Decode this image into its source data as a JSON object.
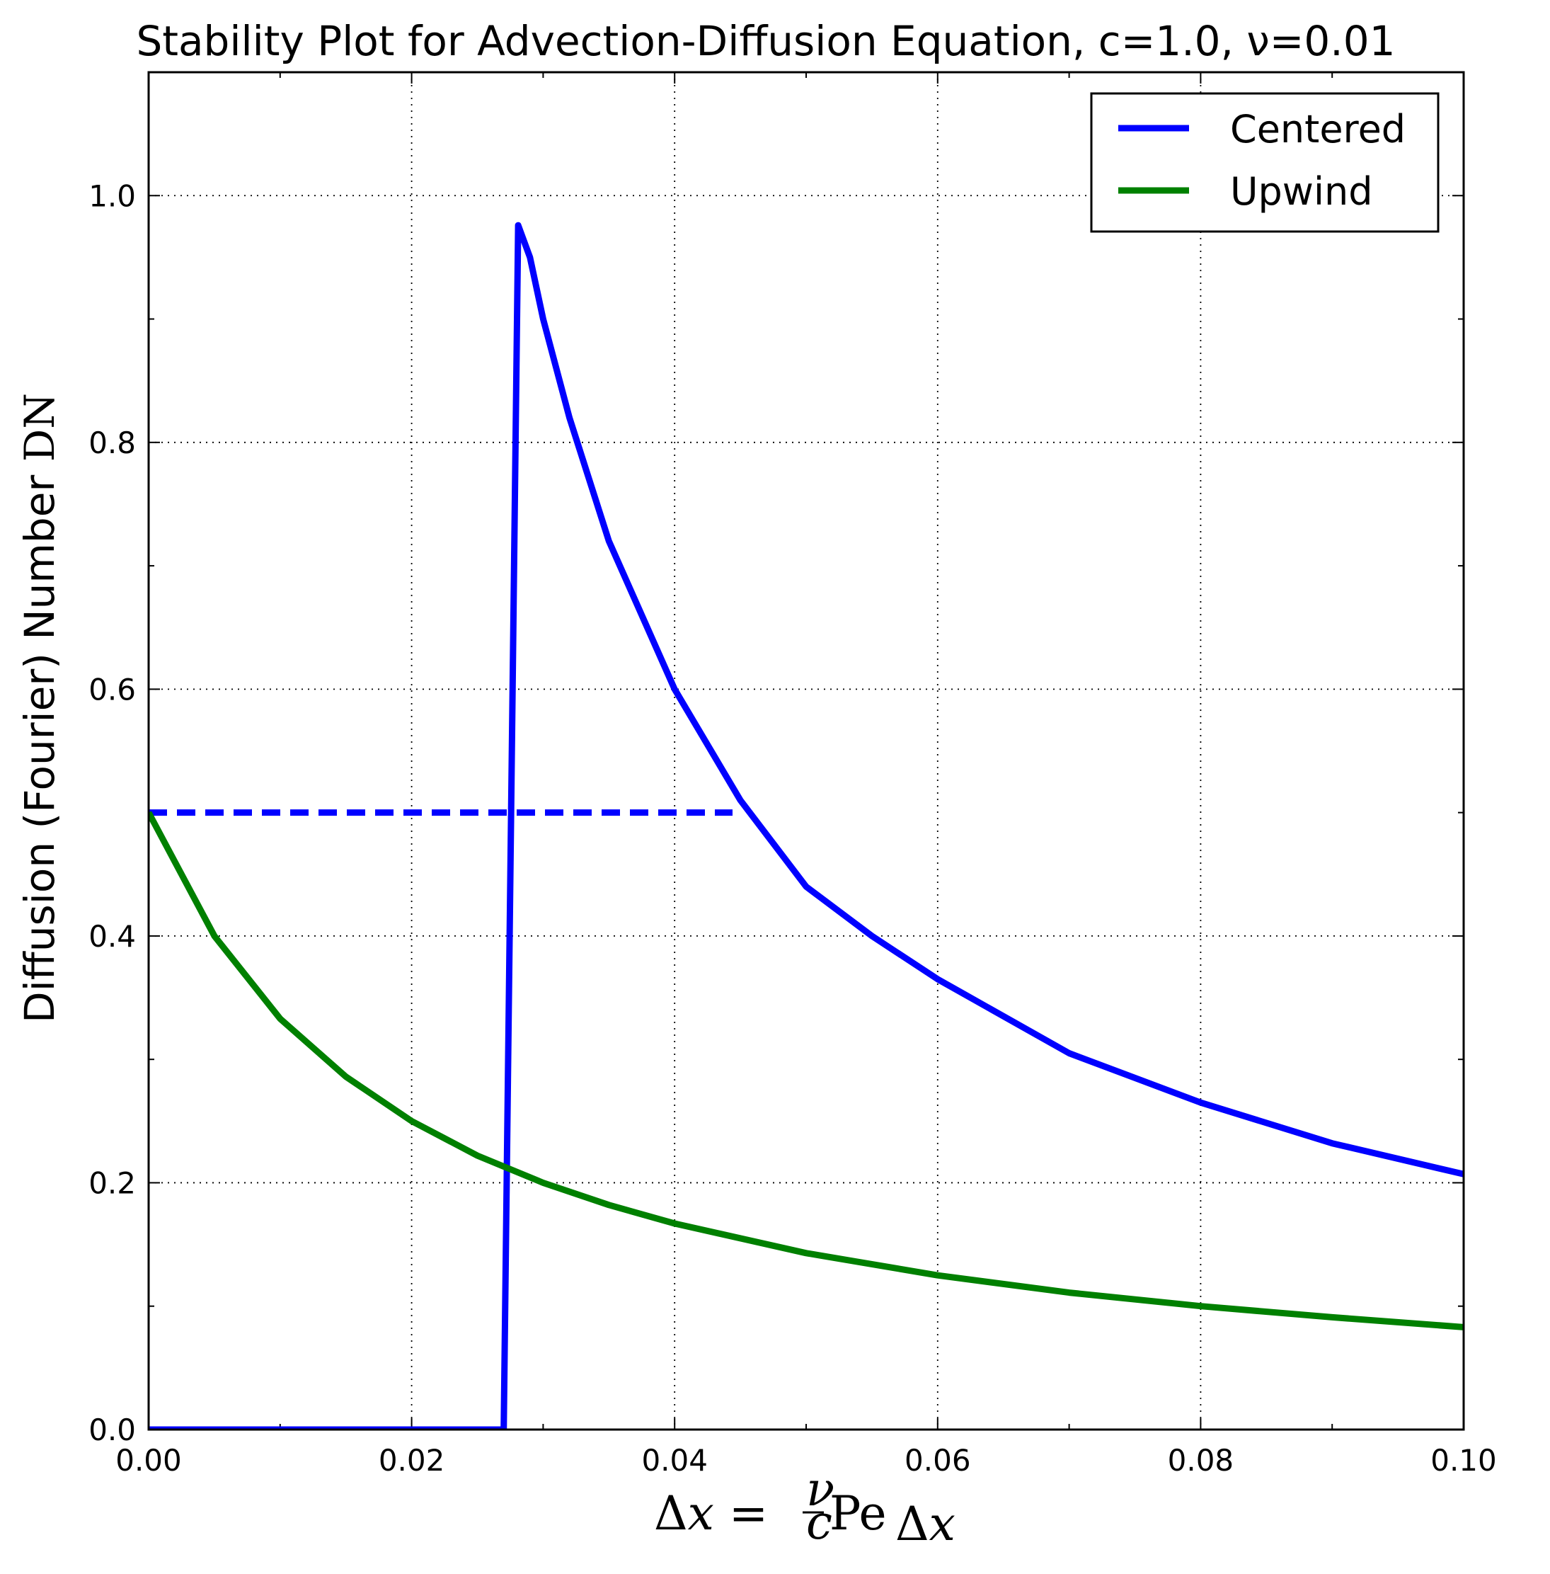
{
  "chart_data": {
    "type": "line",
    "title": "Stability Plot for Advection-Diffusion Equation, c=1.0, ν=0.01",
    "xlabel": "Δx = ν/c Pe_Δx",
    "ylabel": "Diffusion (Fourier) Number DN",
    "xlim": [
      0.0,
      0.1
    ],
    "ylim": [
      0.0,
      1.1
    ],
    "x_ticks": [
      "0.00",
      "0.02",
      "0.04",
      "0.06",
      "0.08",
      "0.10"
    ],
    "y_ticks": [
      "0.0",
      "0.2",
      "0.4",
      "0.6",
      "0.8",
      "1.0"
    ],
    "grid": true,
    "legend_position": "top-right",
    "series": [
      {
        "name": "Centered",
        "color": "#0000ff",
        "style": "solid",
        "x": [
          0.0,
          0.027,
          0.0281,
          0.029,
          0.03,
          0.032,
          0.035,
          0.04,
          0.045,
          0.05,
          0.055,
          0.06,
          0.07,
          0.08,
          0.09,
          0.1
        ],
        "y": [
          0.0,
          0.0,
          0.976,
          0.95,
          0.9,
          0.82,
          0.72,
          0.6,
          0.51,
          0.44,
          0.4,
          0.365,
          0.305,
          0.265,
          0.232,
          0.207
        ]
      },
      {
        "name": "",
        "color": "#0000ff",
        "style": "dashed",
        "x": [
          0.0,
          0.0444
        ],
        "y": [
          0.5,
          0.5
        ]
      },
      {
        "name": "Upwind",
        "color": "#008000",
        "style": "solid",
        "x": [
          0.0,
          0.005,
          0.01,
          0.015,
          0.02,
          0.025,
          0.03,
          0.035,
          0.04,
          0.05,
          0.06,
          0.07,
          0.08,
          0.09,
          0.1
        ],
        "y": [
          0.5,
          0.4,
          0.333,
          0.286,
          0.25,
          0.222,
          0.2,
          0.182,
          0.167,
          0.143,
          0.125,
          0.111,
          0.1,
          0.091,
          0.083
        ]
      }
    ]
  }
}
